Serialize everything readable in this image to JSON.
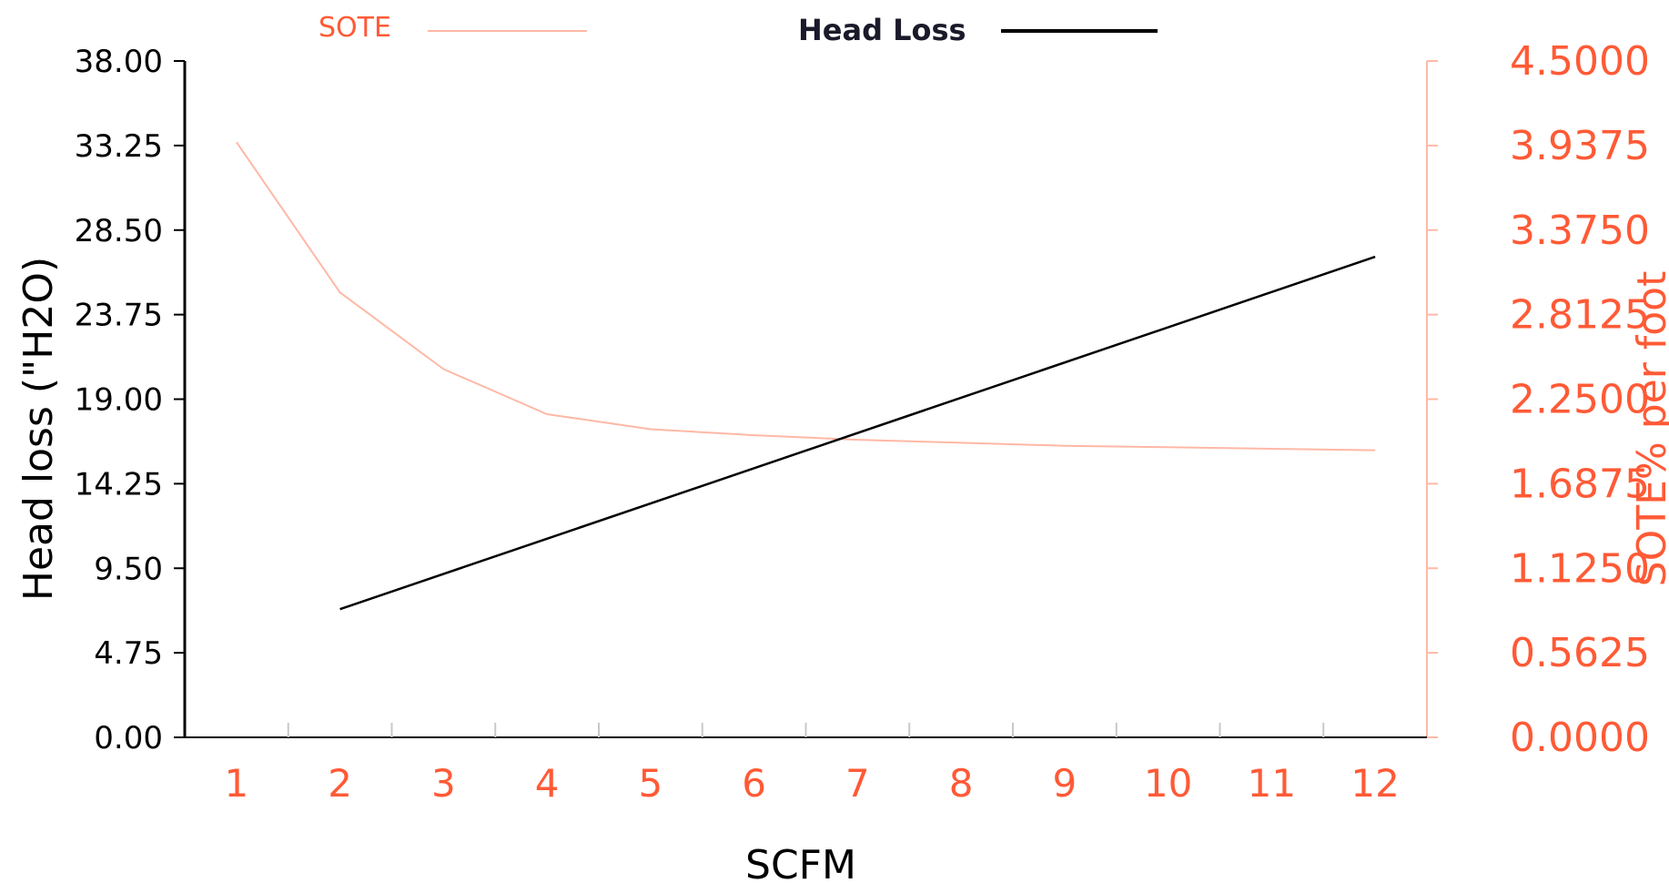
{
  "colors": {
    "head_loss": "#000000",
    "sote": "#ff5a36",
    "sote_line": "#ffb8a6",
    "right_axis": "#ffb8a6",
    "left_axis": "#000000"
  },
  "chart_data": {
    "type": "line",
    "x_label": "SCFM",
    "y_left_label": "Head loss (\"H2O)",
    "y_right_label": "SOTE% per foot",
    "x_ticks": [
      "1",
      "2",
      "3",
      "4",
      "5",
      "6",
      "7",
      "8",
      "9",
      "10",
      "11",
      "12"
    ],
    "y_left_ticks": [
      "38.00",
      "33.25",
      "28.50",
      "23.75",
      "19.00",
      "14.25",
      "9.50",
      "4.75",
      "0.00"
    ],
    "y_right_ticks": [
      "4.5000",
      "3.9375",
      "3.3750",
      "2.8125",
      "2.2500",
      "1.6875",
      "1.1250",
      "0.5625",
      "0.0000"
    ],
    "x_range": [
      0.5,
      12.5
    ],
    "y_left_range": [
      0,
      38
    ],
    "y_right_range": [
      0,
      4.5
    ],
    "legend_placement": "top",
    "grid": false,
    "series": [
      {
        "name": "SOTE",
        "axis": "right",
        "x": [
          1,
          2,
          3,
          4,
          5,
          6,
          7,
          8,
          9,
          10,
          11,
          12
        ],
        "y": [
          3.96,
          2.96,
          2.45,
          2.15,
          2.05,
          2.01,
          1.98,
          1.96,
          1.94,
          1.93,
          1.92,
          1.91
        ]
      },
      {
        "name": "Head Loss",
        "axis": "left",
        "x": [
          2,
          12
        ],
        "y": [
          7.2,
          27.0
        ]
      }
    ]
  }
}
